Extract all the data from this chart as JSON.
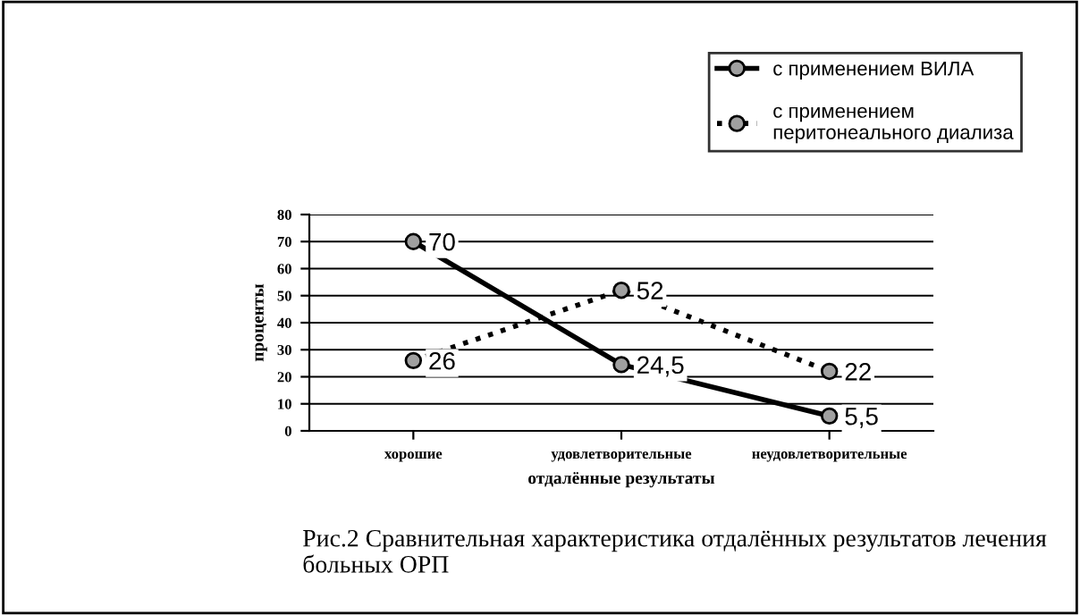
{
  "chart_data": {
    "type": "line",
    "categories": [
      "хорошие",
      "удовлетворительные",
      "неудовлетворительные"
    ],
    "series": [
      {
        "name": "с применением ВИЛА",
        "color": "#000000",
        "values": [
          70,
          24.5,
          5.5
        ],
        "value_labels": [
          "70",
          "24,5",
          "5,5"
        ],
        "line_style": "solid"
      },
      {
        "name": "с применением\nперитонеального диализа",
        "color": "#000000",
        "values": [
          26,
          52,
          22
        ],
        "value_labels": [
          "26",
          "52",
          "22"
        ],
        "line_style": "dotted"
      }
    ],
    "ylabel": "проценты",
    "xlabel": "отдалённые результаты",
    "ylim": [
      0,
      80
    ],
    "yticks": [
      0,
      10,
      20,
      30,
      40,
      50,
      60,
      70,
      80
    ],
    "grid": "y",
    "legend": "top right",
    "marker": "circle",
    "annotations": [
      "Рис.2 Сравнительная характеристика отдалённых результатов лечения больных ОРП"
    ]
  }
}
